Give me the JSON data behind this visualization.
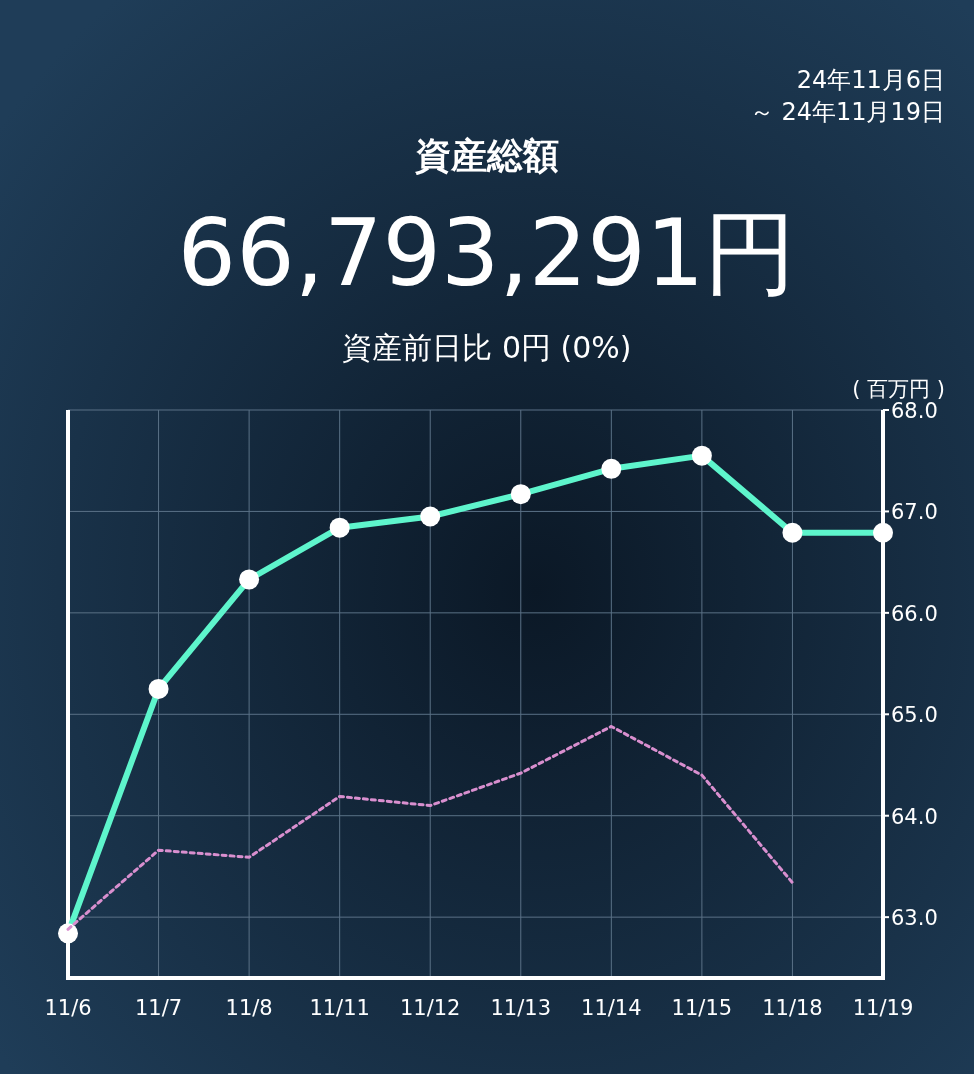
{
  "chart_data": {
    "type": "line",
    "title": "資産総額",
    "subtitle": "66,793,291円",
    "annotations": [
      "24年11月6日",
      "～ 24年11月19日",
      "資産前日比 0円 (0%)"
    ],
    "ylabel": "( 百万円 )",
    "categories": [
      "11/6",
      "11/7",
      "11/8",
      "11/11",
      "11/12",
      "11/13",
      "11/14",
      "11/15",
      "11/18",
      "11/19"
    ],
    "series": [
      {
        "color": "#5ef5cc",
        "marker": "circle",
        "line_style": "solid",
        "values": [
          62.84,
          65.25,
          66.33,
          66.84,
          66.95,
          67.17,
          67.42,
          67.55,
          66.79,
          66.79
        ]
      },
      {
        "color": "#d98fcf",
        "marker": "none",
        "line_style": "dotted",
        "values": [
          62.88,
          63.66,
          63.59,
          64.19,
          64.1,
          64.42,
          64.88,
          64.4,
          63.34,
          null
        ]
      }
    ],
    "ylim": [
      62.4,
      68.0
    ],
    "yticks": [
      {
        "value": 63,
        "label": "63.0"
      },
      {
        "value": 64,
        "label": "64.0"
      },
      {
        "value": 65,
        "label": "65.0"
      },
      {
        "value": 66,
        "label": "66.0"
      },
      {
        "value": 67,
        "label": "67.0"
      },
      {
        "value": 68,
        "label": "68.0"
      }
    ],
    "grid": true
  }
}
